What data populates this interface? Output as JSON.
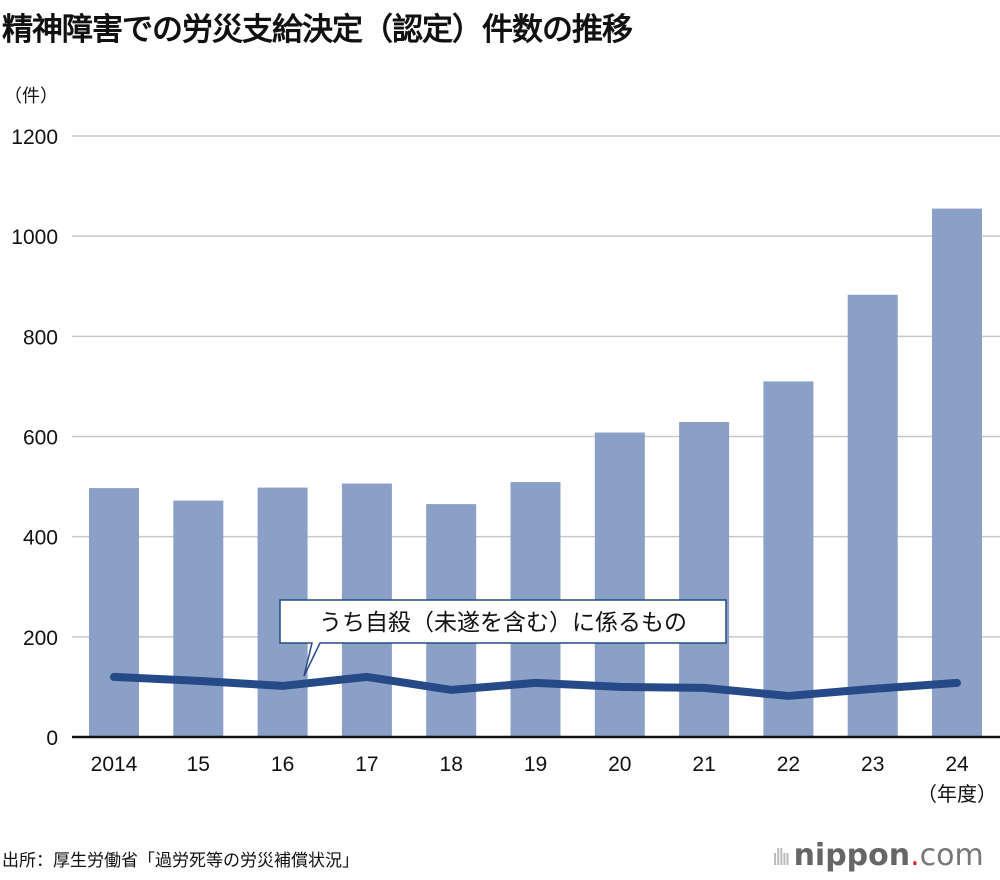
{
  "chart_data": {
    "type": "bar",
    "title": "精神障害での労災支給決定（認定）件数の推移",
    "ylabel": "（件）",
    "xlabel_suffix": "（年度）",
    "categories": [
      "2014",
      "15",
      "16",
      "17",
      "18",
      "19",
      "20",
      "21",
      "22",
      "23",
      "24"
    ],
    "ylim": [
      0,
      1200
    ],
    "yticks": [
      0,
      200,
      400,
      600,
      800,
      1000,
      1200
    ],
    "grid": true,
    "series": [
      {
        "type": "bar",
        "values": [
          497,
          472,
          498,
          506,
          465,
          509,
          608,
          629,
          710,
          883,
          1055
        ],
        "color": "#8ba0c6"
      },
      {
        "type": "line",
        "name": "うち自殺（未遂を含む）に係るもの",
        "values": [
          120,
          112,
          102,
          120,
          94,
          108,
          100,
          98,
          82,
          96,
          108
        ],
        "color": "#254a87"
      }
    ]
  },
  "source": "出所：厚生労働省「過労死等の労災補償状況」",
  "logo": {
    "name": "nippon",
    "dot": ".",
    "tld": "com"
  }
}
